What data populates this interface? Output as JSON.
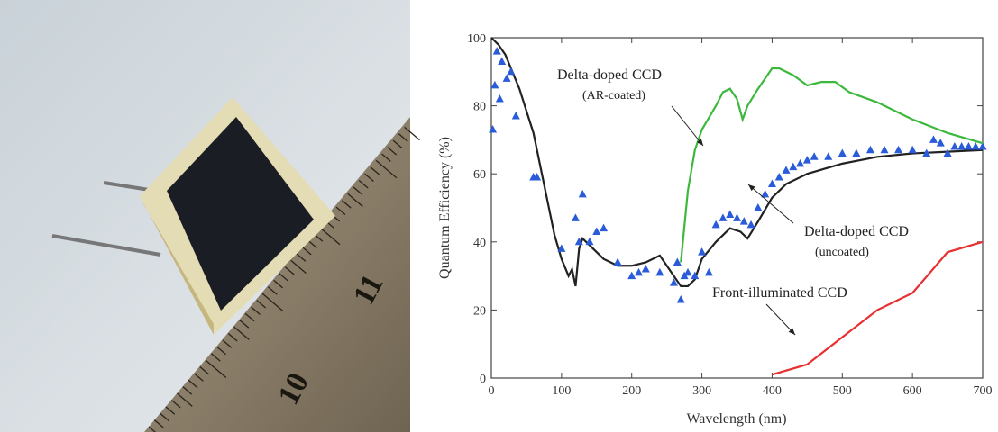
{
  "photo": {
    "ruler_labels": [
      "10",
      "11"
    ]
  },
  "chart_data": {
    "type": "line",
    "xlabel": "Wavelength (nm)",
    "ylabel": "Quantum Efficiency (%)",
    "xlim": [
      0,
      700
    ],
    "xticks": [
      0,
      100,
      200,
      300,
      400,
      500,
      600,
      700
    ],
    "ylim": [
      0,
      100
    ],
    "yticks": [
      0,
      20,
      40,
      60,
      80,
      100
    ],
    "annotations": [
      "Delta-doped CCD",
      "(AR-coated)",
      "Delta-doped CCD",
      "(uncoated)",
      "Front-illuminated CCD"
    ],
    "series": [
      {
        "mode": "line",
        "color": "#222222",
        "x": [
          0,
          10,
          20,
          40,
          60,
          70,
          80,
          90,
          100,
          110,
          115,
          120,
          125,
          130,
          140,
          160,
          180,
          200,
          220,
          240,
          250,
          260,
          270,
          280,
          290,
          300,
          320,
          340,
          355,
          365,
          380,
          400,
          420,
          450,
          500,
          550,
          600,
          650,
          700
        ],
        "values": [
          100,
          98,
          95,
          85,
          72,
          62,
          52,
          42,
          35,
          30,
          32,
          27,
          38,
          41,
          39,
          35,
          33,
          33,
          34,
          36,
          33,
          30,
          27,
          27,
          29,
          35,
          40,
          44,
          43,
          41,
          46,
          53,
          57,
          60,
          63,
          65,
          66,
          66.5,
          67
        ]
      },
      {
        "mode": "markers",
        "color": "#2a5bd8",
        "x": [
          2,
          5,
          8,
          12,
          15,
          22,
          28,
          35,
          60,
          65,
          100,
          120,
          125,
          130,
          140,
          150,
          160,
          180,
          200,
          210,
          220,
          240,
          260,
          265,
          270,
          275,
          280,
          290,
          300,
          310,
          320,
          330,
          340,
          350,
          360,
          370,
          380,
          390,
          400,
          410,
          420,
          430,
          440,
          450,
          460,
          480,
          500,
          520,
          540,
          560,
          580,
          600,
          620,
          630,
          640,
          650,
          660,
          670,
          680,
          690,
          700
        ],
        "values": [
          73,
          86,
          96,
          82,
          93,
          88,
          90,
          77,
          59,
          59,
          38,
          47,
          40,
          54,
          40,
          43,
          44,
          34,
          30,
          31,
          32,
          31,
          28,
          34,
          23,
          30,
          31,
          30,
          37,
          31,
          45,
          47,
          48,
          47,
          46,
          45,
          50,
          54,
          57,
          59,
          61,
          62,
          63,
          64,
          65,
          65,
          66,
          66,
          67,
          67,
          67,
          67,
          66,
          70,
          69,
          66,
          68,
          68,
          68,
          68,
          68
        ]
      },
      {
        "mode": "line",
        "color": "#3cb83c",
        "x": [
          270,
          280,
          290,
          300,
          320,
          330,
          340,
          350,
          358,
          365,
          380,
          400,
          410,
          430,
          450,
          470,
          490,
          510,
          550,
          600,
          650,
          700
        ],
        "values": [
          34,
          55,
          67,
          73,
          80,
          84,
          85,
          82,
          76,
          80,
          85,
          91,
          91,
          89,
          86,
          87,
          87,
          84,
          81,
          76,
          72,
          69
        ]
      },
      {
        "mode": "line",
        "color": "#e83030",
        "x": [
          400,
          450,
          500,
          550,
          600,
          650,
          700
        ],
        "values": [
          1,
          4,
          12,
          20,
          25,
          37,
          40
        ]
      }
    ]
  }
}
